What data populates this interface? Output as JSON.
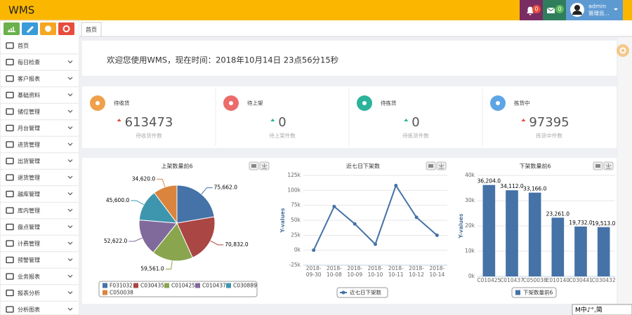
{
  "header": {
    "title": "WMS",
    "alerts": 0,
    "messages": 0,
    "user": "admin",
    "role": "管理员..."
  },
  "sidebar": {
    "menu": [
      "首页",
      "每日检查",
      "客户报表",
      "基础资料",
      "储位管理",
      "月台管理",
      "进货管理",
      "出货管理",
      "退货管理",
      "越库管理",
      "库内管理",
      "盘点管理",
      "计费管理",
      "预警管理",
      "业务报表",
      "报表分析",
      "分析图表"
    ]
  },
  "tabs": [
    "首页"
  ],
  "welcome": "欢迎您使用WMS，现在时间：2018年10月14日 23点56分15秒",
  "stats": [
    {
      "label": "待收货",
      "value": 613473,
      "caption": "待收货件数",
      "color": "#f0a04b",
      "trend_color": "#e74c3c"
    },
    {
      "label": "待上架",
      "value": 0,
      "caption": "待上架件数",
      "color": "#ec6b6b",
      "trend_color": "#2bb39b"
    },
    {
      "label": "待拣货",
      "value": 0,
      "caption": "待拣货件数",
      "color": "#2bb39b",
      "trend_color": "#2bb39b"
    },
    {
      "label": "拣货中",
      "value": 97395,
      "caption": "拣货中件数",
      "color": "#5ea5e5",
      "trend_color": "#e74c3c"
    }
  ],
  "chart_data": [
    {
      "type": "pie",
      "title": "上架数量前6",
      "categories": [
        "F031032",
        "C030435",
        "C010425",
        "C010437",
        "C030889",
        "C050038"
      ],
      "values": [
        75662,
        70832,
        59561,
        52622,
        45600,
        34620
      ],
      "value_labels": [
        "75,662.0",
        "70,832.0",
        "59,561.0",
        "52,622.0",
        "45,600.0",
        "34,620.0"
      ],
      "colors": [
        "#4572A7",
        "#AA4643",
        "#89A54E",
        "#80699B",
        "#3D96AE",
        "#DB843D"
      ]
    },
    {
      "type": "line",
      "title": "近七日下架数",
      "y_label": "Y-values",
      "grid": true,
      "categories": [
        "2018-09-30",
        "2018-10-08",
        "2018-10-09",
        "2018-10-10",
        "2018-10-11",
        "2018-10-12",
        "2018-10-14"
      ],
      "series": [
        {
          "name": "近七日下架数",
          "color": "#4572A7",
          "values": [
            0,
            73000,
            44000,
            10000,
            108000,
            55000,
            25000
          ]
        }
      ],
      "ylim": [
        -25000,
        125000
      ],
      "yticks": [
        {
          "value": -25000,
          "label": "-25k"
        },
        {
          "value": 0,
          "label": "0k"
        },
        {
          "value": 25000,
          "label": "25k"
        },
        {
          "value": 50000,
          "label": "50k"
        },
        {
          "value": 75000,
          "label": "75k"
        },
        {
          "value": 100000,
          "label": "100k"
        },
        {
          "value": 125000,
          "label": "125k"
        }
      ]
    },
    {
      "type": "bar",
      "title": "下架数量前6",
      "y_label": "Y-values",
      "grid": true,
      "categories": [
        "C010425",
        "C010437",
        "C050038",
        "E010140",
        "C030441",
        "C030432"
      ],
      "series": [
        {
          "name": "下架数量前6",
          "color": "#4572A7",
          "values": [
            36204,
            34112,
            33166,
            23261,
            19732,
            19513
          ],
          "value_labels": [
            "36,204.0",
            "34,112.0",
            "33,166.0",
            "23,261.0",
            "19,732.0",
            "19,513.0"
          ]
        }
      ],
      "ylim": [
        0,
        40000
      ],
      "yticks": [
        {
          "value": 0,
          "label": "0k"
        },
        {
          "value": 10000,
          "label": "10k"
        },
        {
          "value": 20000,
          "label": "20k"
        },
        {
          "value": 30000,
          "label": "30k"
        },
        {
          "value": 40000,
          "label": "40k"
        }
      ]
    }
  ],
  "ime_bar": "M中♪°,简"
}
